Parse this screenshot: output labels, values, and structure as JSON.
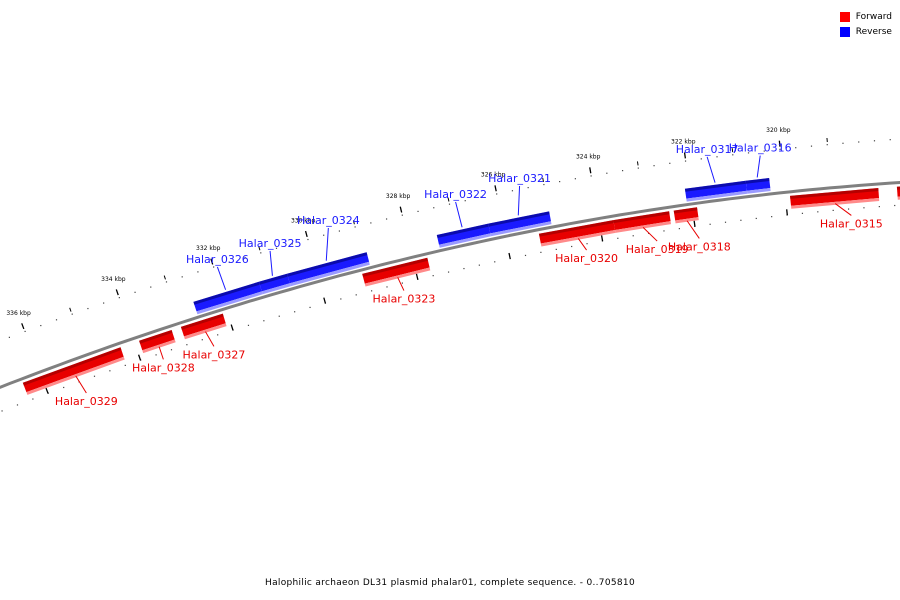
{
  "caption": "Halophilic archaeon DL31 plasmid phalar01, complete sequence. - 0..705810",
  "legend": [
    {
      "label": "Forward",
      "color": "#ff0000"
    },
    {
      "label": "Reverse",
      "color": "#0000ff"
    }
  ],
  "colors": {
    "forward": "#e80000",
    "reverse": "#1a1aff",
    "backbone": "#808080"
  },
  "ticks": [
    {
      "kbp": 336,
      "label": "336 kbp"
    },
    {
      "kbp": 334,
      "label": "334 kbp"
    },
    {
      "kbp": 332,
      "label": "332 kbp"
    },
    {
      "kbp": 330,
      "label": "330 kbp"
    },
    {
      "kbp": 328,
      "label": "328 kbp"
    },
    {
      "kbp": 326,
      "label": "326 kbp"
    },
    {
      "kbp": 324,
      "label": "324 kbp"
    },
    {
      "kbp": 322,
      "label": "322 kbp"
    },
    {
      "kbp": 320,
      "label": "320 kbp"
    }
  ],
  "genes": [
    {
      "name": "Halar_0329",
      "strand": "forward",
      "start_kbp": 336.4,
      "end_kbp": 334.3
    },
    {
      "name": "Halar_0328",
      "strand": "forward",
      "start_kbp": 333.9,
      "end_kbp": 333.2
    },
    {
      "name": "Halar_0327",
      "strand": "forward",
      "start_kbp": 333.0,
      "end_kbp": 332.1
    },
    {
      "name": "Halar_0326",
      "strand": "reverse",
      "start_kbp": 332.6,
      "end_kbp": 331.2
    },
    {
      "name": "Halar_0325",
      "strand": "reverse",
      "start_kbp": 331.2,
      "end_kbp": 330.6
    },
    {
      "name": "Halar_0324",
      "strand": "reverse",
      "start_kbp": 330.6,
      "end_kbp": 328.9
    },
    {
      "name": "Halar_0323",
      "strand": "forward",
      "start_kbp": 329.1,
      "end_kbp": 327.7
    },
    {
      "name": "Halar_0322",
      "strand": "reverse",
      "start_kbp": 327.4,
      "end_kbp": 326.3
    },
    {
      "name": "Halar_0321",
      "strand": "reverse",
      "start_kbp": 326.3,
      "end_kbp": 325.0
    },
    {
      "name": "Halar_0320",
      "strand": "forward",
      "start_kbp": 325.3,
      "end_kbp": 323.7
    },
    {
      "name": "Halar_0319",
      "strand": "forward",
      "start_kbp": 323.7,
      "end_kbp": 322.5
    },
    {
      "name": "Halar_0318",
      "strand": "forward",
      "start_kbp": 322.4,
      "end_kbp": 321.9
    },
    {
      "name": "Halar_0317",
      "strand": "reverse",
      "start_kbp": 322.1,
      "end_kbp": 320.8
    },
    {
      "name": "Halar_0316",
      "strand": "reverse",
      "start_kbp": 320.8,
      "end_kbp": 320.3
    },
    {
      "name": "Halar_0315",
      "strand": "forward",
      "start_kbp": 319.9,
      "end_kbp": 318.0
    },
    {
      "name": "",
      "strand": "forward",
      "start_kbp": 317.6,
      "end_kbp": 316.9
    }
  ]
}
